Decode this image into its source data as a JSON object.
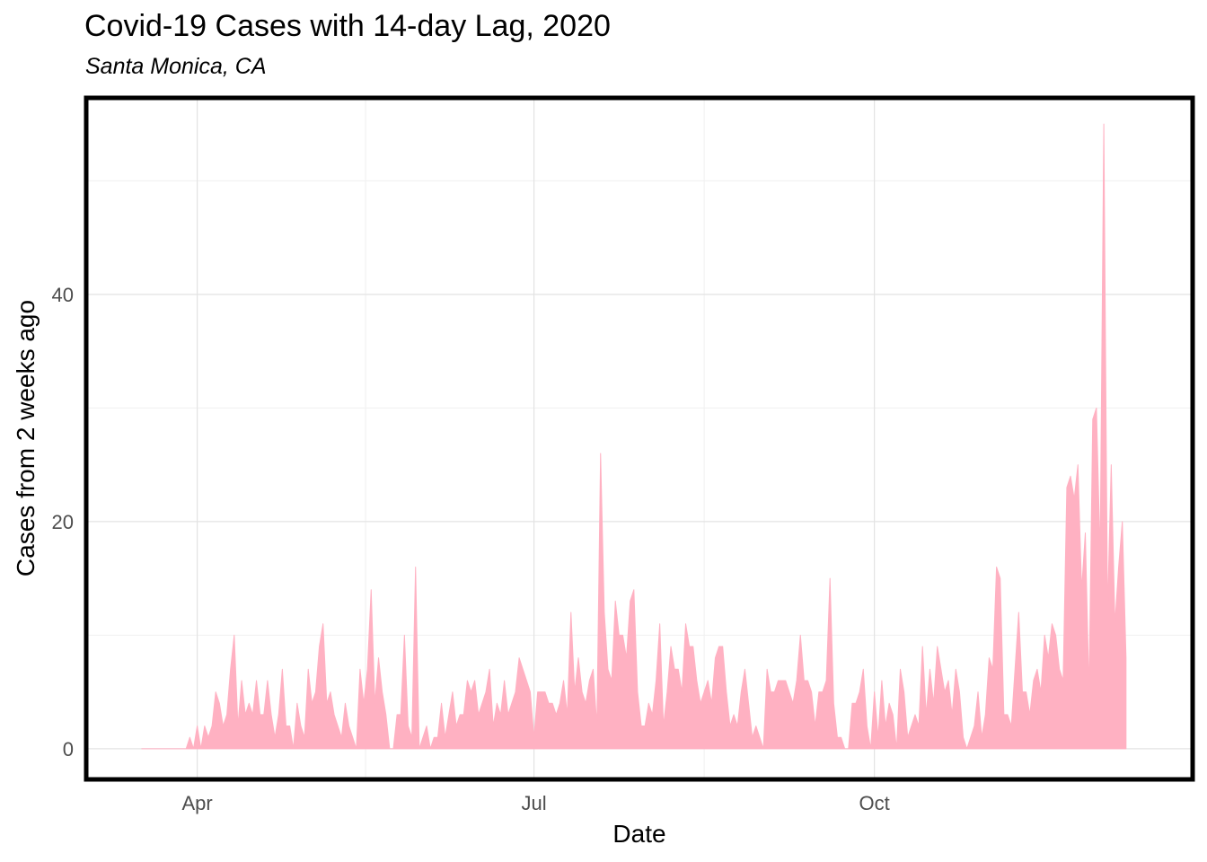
{
  "chart_data": {
    "type": "area",
    "title": "Covid-19 Cases with 14-day Lag, 2020",
    "subtitle": "Santa Monica, CA",
    "xlabel": "Date",
    "ylabel": "Cases from 2 weeks ago",
    "x_start": "2020-03-17",
    "x_ticks": [
      {
        "label": "Apr",
        "date": "2020-04-01"
      },
      {
        "label": "Jul",
        "date": "2020-07-01"
      },
      {
        "label": "Oct",
        "date": "2020-10-01"
      }
    ],
    "y_ticks": [
      0,
      20,
      40
    ],
    "xlim": [
      "2020-03-02",
      "2020-12-26"
    ],
    "ylim": [
      -2.7,
      57.3
    ],
    "grid": true,
    "fill_color": "#FFB1C2",
    "values": [
      0,
      0,
      0,
      0,
      0,
      0,
      0,
      0,
      0,
      0,
      0,
      0,
      0,
      1,
      0,
      2,
      0,
      2,
      1,
      2,
      5,
      4,
      2,
      3,
      7,
      10,
      2,
      6,
      3,
      4,
      3,
      6,
      3,
      3,
      6,
      3,
      1,
      3,
      7,
      2,
      2,
      0,
      4,
      2,
      1,
      7,
      4,
      5,
      9,
      11,
      4,
      5,
      3,
      2,
      1,
      4,
      2,
      1,
      0,
      7,
      4,
      7,
      14,
      4,
      8,
      5,
      3,
      0,
      0,
      3,
      3,
      10,
      2,
      1,
      16,
      0,
      1,
      2,
      0,
      1,
      1,
      4,
      1,
      3,
      5,
      2,
      3,
      3,
      6,
      5,
      6,
      3,
      4,
      5,
      7,
      2,
      4,
      3,
      6,
      3,
      4,
      5,
      8,
      7,
      6,
      5,
      1,
      5,
      5,
      5,
      4,
      4,
      3,
      4,
      6,
      3,
      12,
      5,
      8,
      5,
      4,
      6,
      7,
      2,
      26,
      12,
      7,
      6,
      13,
      10,
      10,
      8,
      13,
      14,
      5,
      2,
      2,
      4,
      3,
      6,
      11,
      2,
      5,
      9,
      7,
      7,
      5,
      11,
      9,
      9,
      6,
      4,
      5,
      6,
      4,
      8,
      9,
      9,
      5,
      2,
      3,
      2,
      5,
      7,
      4,
      1,
      2,
      1,
      0,
      7,
      5,
      5,
      6,
      6,
      6,
      5,
      4,
      6,
      10,
      6,
      6,
      5,
      2,
      5,
      5,
      6,
      15,
      4,
      1,
      1,
      0,
      0,
      4,
      4,
      5,
      7,
      2,
      0,
      5,
      1,
      6,
      2,
      4,
      3,
      0,
      7,
      5,
      1,
      2,
      3,
      2,
      9,
      3,
      7,
      4,
      9,
      7,
      5,
      6,
      3,
      7,
      5,
      1,
      0,
      1,
      2,
      5,
      1,
      3,
      8,
      7,
      16,
      15,
      3,
      3,
      2,
      7,
      12,
      5,
      5,
      3,
      6,
      7,
      5,
      10,
      8,
      11,
      10,
      7,
      6,
      23,
      24,
      22,
      25,
      14,
      19,
      5,
      29,
      30,
      17,
      55,
      12,
      25,
      11,
      16,
      20,
      8
    ]
  }
}
